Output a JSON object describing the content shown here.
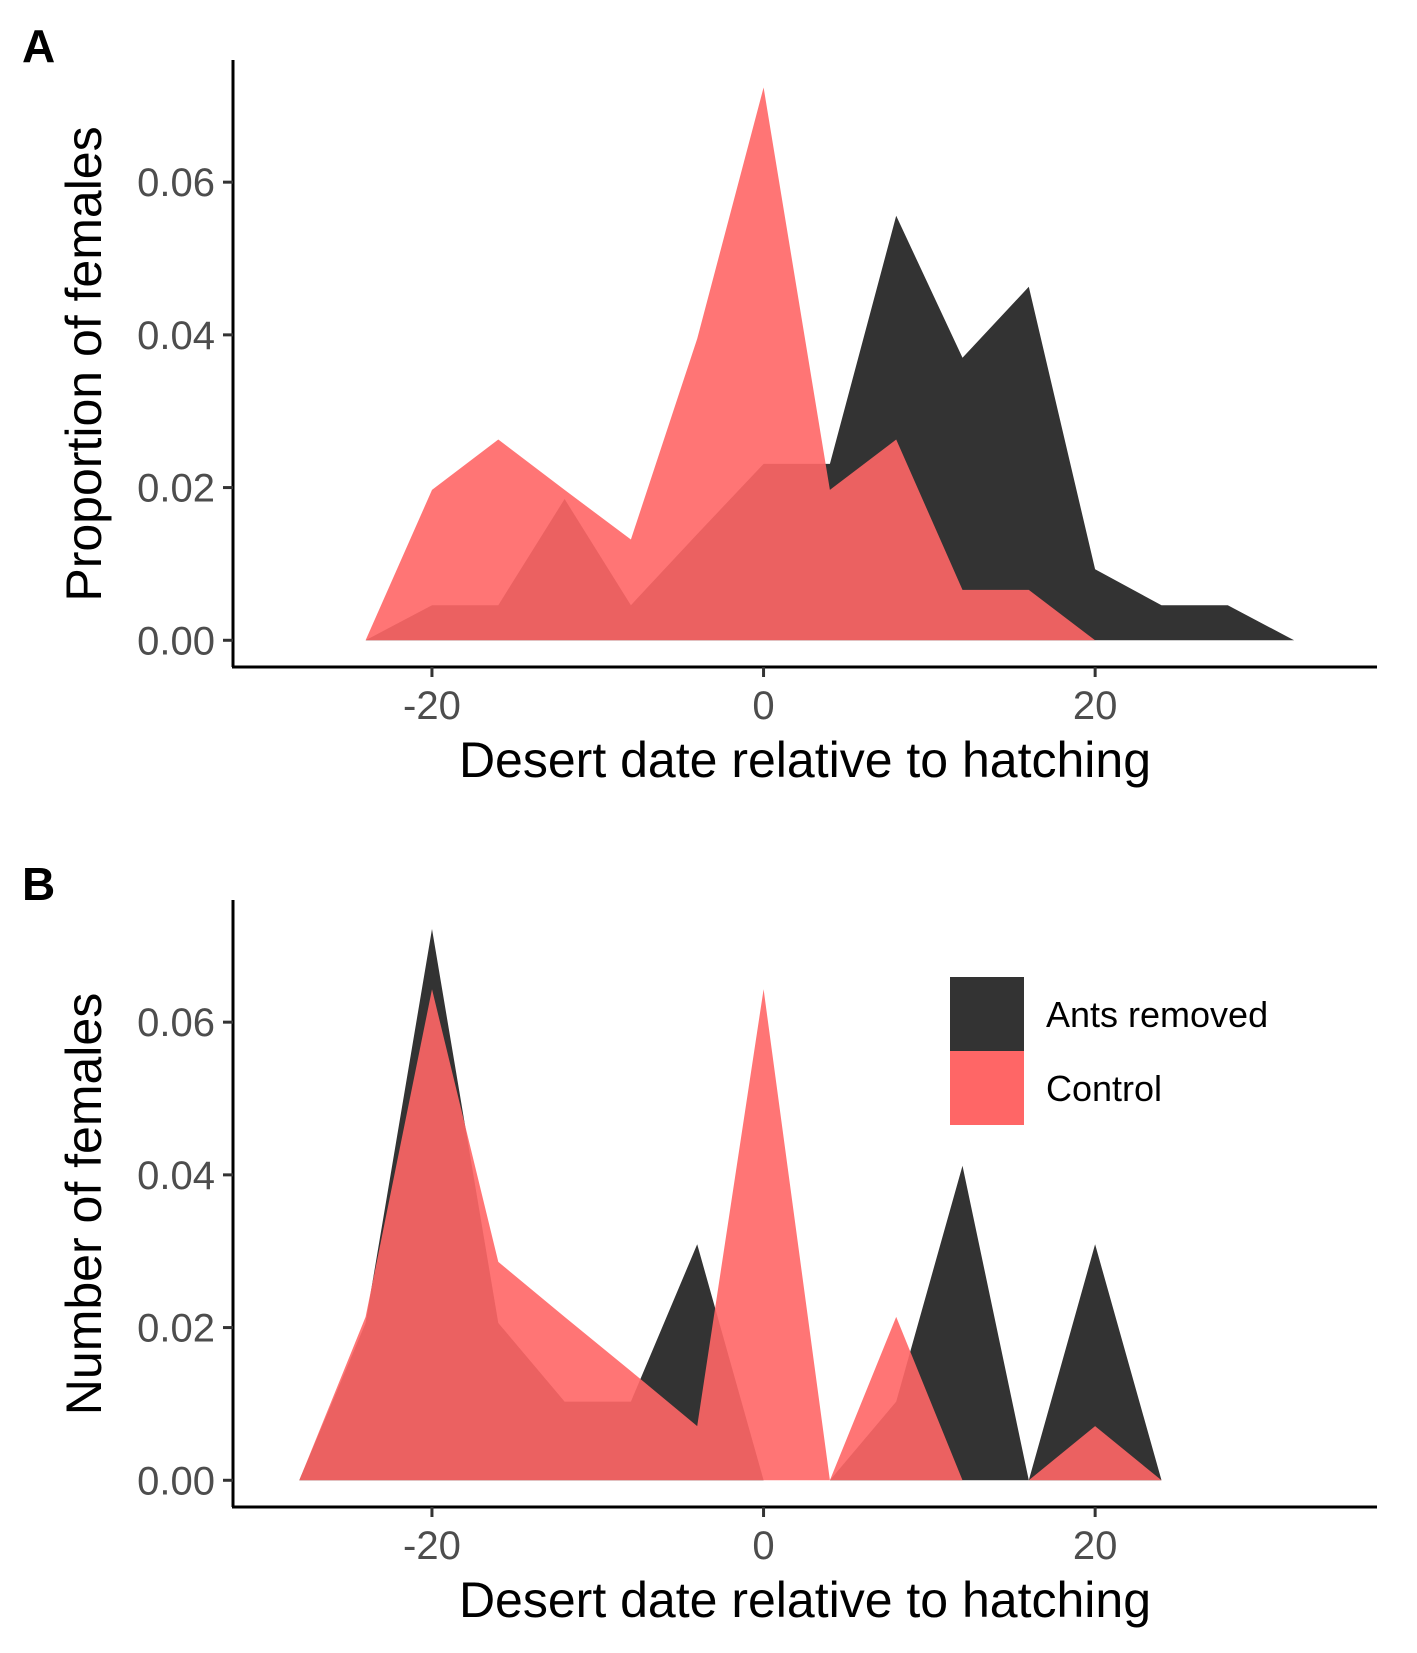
{
  "chart_data": [
    {
      "type": "area",
      "panel_label": "A",
      "title": "",
      "xlabel": "Desert date relative to hatching",
      "ylabel": "Proportion of females",
      "xlim": [
        -32,
        37
      ],
      "ylim": [
        -0.0035,
        0.076
      ],
      "xticks": [
        -20,
        0,
        20
      ],
      "xtick_labels": [
        "-20",
        "0",
        "20"
      ],
      "yticks": [
        0,
        0.02,
        0.04,
        0.06
      ],
      "ytick_labels": [
        "0.00",
        "0.02",
        "0.04",
        "0.06"
      ],
      "grid": false,
      "legend": "none",
      "series": [
        {
          "name": "Ants removed",
          "color": "#333333",
          "x": [
            -24,
            -20,
            -16,
            -12,
            -8,
            -4,
            0,
            4,
            8,
            12,
            16,
            20,
            24,
            28,
            32
          ],
          "values": [
            0,
            0.0046,
            0.0046,
            0.0185,
            0.0046,
            0.0139,
            0.0231,
            0.0231,
            0.0556,
            0.037,
            0.0463,
            0.0093,
            0.0046,
            0.0046,
            0
          ]
        },
        {
          "name": "Control",
          "color": "#ff6666",
          "x": [
            -24,
            -20,
            -16,
            -12,
            -8,
            -4,
            0,
            4,
            8,
            12,
            16,
            20
          ],
          "values": [
            0,
            0.0197,
            0.0263,
            0.0197,
            0.0132,
            0.0395,
            0.0724,
            0.0197,
            0.0263,
            0.0066,
            0.0066,
            0
          ]
        }
      ]
    },
    {
      "type": "area",
      "panel_label": "B",
      "title": "",
      "xlabel": "Desert date relative to hatching",
      "ylabel": "Number of females",
      "xlim": [
        -32,
        37
      ],
      "ylim": [
        -0.0035,
        0.076
      ],
      "xticks": [
        -20,
        0,
        20
      ],
      "xtick_labels": [
        "-20",
        "0",
        "20"
      ],
      "yticks": [
        0,
        0.02,
        0.04,
        0.06
      ],
      "ytick_labels": [
        "0.00",
        "0.02",
        "0.04",
        "0.06"
      ],
      "grid": false,
      "legend": "top-right",
      "series": [
        {
          "name": "Ants removed",
          "color": "#333333",
          "x": [
            -28,
            -24,
            -20,
            -16,
            -12,
            -8,
            -4,
            0,
            4,
            8,
            12,
            16,
            20,
            24
          ],
          "values": [
            0,
            0.0206,
            0.0722,
            0.0206,
            0.0103,
            0.0103,
            0.0309,
            0,
            0,
            0.0103,
            0.0412,
            0,
            0.0309,
            0
          ]
        },
        {
          "name": "Control",
          "color": "#ff6666",
          "x": [
            -28,
            -24,
            -20,
            -16,
            -12,
            -8,
            -4,
            0,
            4,
            8,
            12,
            16,
            20,
            24
          ],
          "values": [
            0,
            0.0214,
            0.0643,
            0.0286,
            0.0214,
            0.0143,
            0.0071,
            0.0643,
            0,
            0.0214,
            0,
            0,
            0.0071,
            0
          ]
        }
      ]
    }
  ]
}
